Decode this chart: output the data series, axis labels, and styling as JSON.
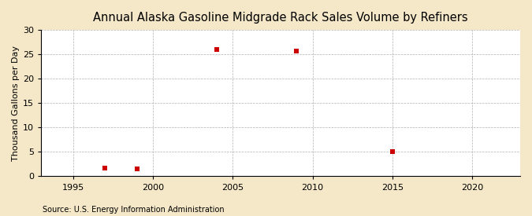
{
  "title": "Annual Alaska Gasoline Midgrade Rack Sales Volume by Refiners",
  "ylabel": "Thousand Gallons per Day",
  "source": "Source: U.S. Energy Information Administration",
  "fig_background_color": "#f5e8c8",
  "plot_background_color": "#ffffff",
  "data_color": "#cc0000",
  "x_data": [
    1997,
    1999,
    2004,
    2009,
    2015
  ],
  "y_data": [
    1.7,
    1.6,
    26.0,
    25.7,
    5.1
  ],
  "xlim": [
    1993,
    2023
  ],
  "ylim": [
    0,
    30
  ],
  "yticks": [
    0,
    5,
    10,
    15,
    20,
    25,
    30
  ],
  "xticks": [
    1995,
    2000,
    2005,
    2010,
    2015,
    2020
  ],
  "marker_size": 5,
  "title_fontsize": 10.5,
  "axis_fontsize": 8,
  "tick_fontsize": 8,
  "source_fontsize": 7
}
